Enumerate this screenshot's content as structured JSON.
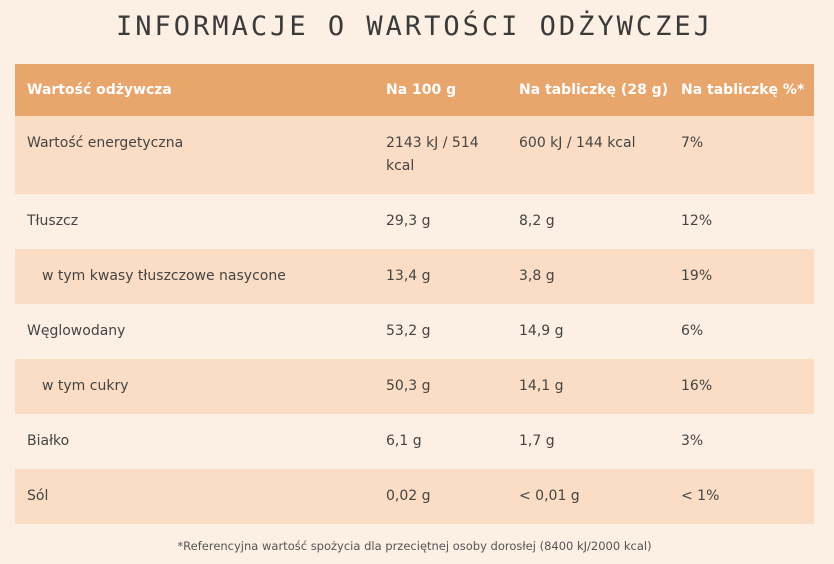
{
  "title": "INFORMACJE O WARTOŚCI ODŻYWCZEJ",
  "table": {
    "headers": [
      "Wartość odżywcza",
      "Na 100 g",
      "Na tabliczkę (28 g)",
      "Na tabliczkę %*"
    ],
    "rows": [
      [
        "Wartość energetyczna",
        "2143 kJ / 514 kcal",
        "600 kJ / 144 kcal",
        "7%"
      ],
      [
        "Tłuszcz",
        "29,3 g",
        "8,2 g",
        "12%"
      ],
      [
        "w tym kwasy tłuszczowe nasycone",
        "13,4 g",
        "3,8 g",
        "19%"
      ],
      [
        "Węglowodany",
        "53,2 g",
        "14,9 g",
        "6%"
      ],
      [
        "w tym cukry",
        "50,3 g",
        "14,1 g",
        "16%"
      ],
      [
        "Białko",
        "6,1 g",
        "1,7 g",
        "3%"
      ],
      [
        "Sól",
        "0,02 g",
        "< 0,01 g",
        "< 1%"
      ]
    ]
  },
  "footnote": "*Referencyjna wartość spożycia dla przeciętnej osoby dorosłej (8400 kJ/2000 kcal)",
  "colors": {
    "background": "#fcefe3",
    "header": "#e8a56c",
    "row_shaded": "#faddc4"
  }
}
